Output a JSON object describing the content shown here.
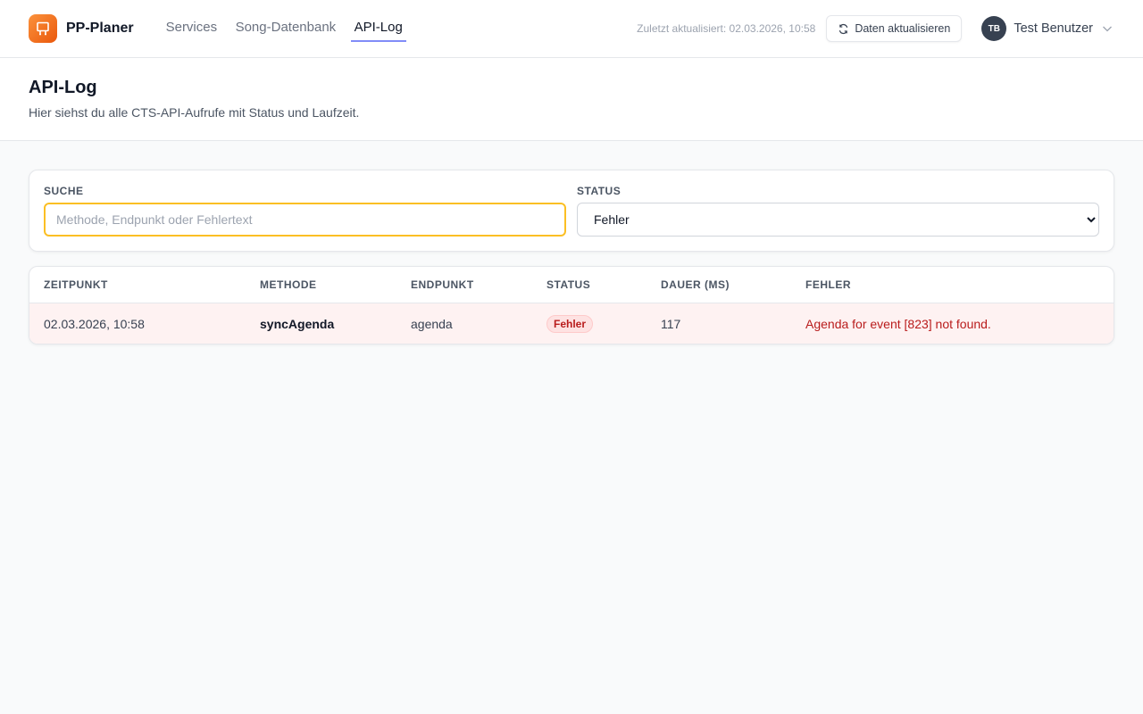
{
  "app": {
    "name": "PP-Planer",
    "accent": "#f97316"
  },
  "nav": [
    {
      "label": "Services"
    },
    {
      "label": "Song-Datenbank"
    },
    {
      "label": "API-Log",
      "active": true
    }
  ],
  "topbar": {
    "updated": "Zuletzt aktualisiert: 02.03.2026, 10:58",
    "refresh_label": "Daten aktualisieren",
    "user_initials": "TB",
    "user_name": "Test Benutzer"
  },
  "page": {
    "title": "API-Log",
    "subtitle": "Hier siehst du alle CTS-API-Aufrufe mit Status und Laufzeit."
  },
  "filters": {
    "search_label": "SUCHE",
    "search_placeholder": "Methode, Endpunkt oder Fehlertext",
    "search_value": "",
    "status_label": "STATUS",
    "status_value": "Fehler"
  },
  "table": {
    "columns": [
      "ZEITPUNKT",
      "METHODE",
      "ENDPUNKT",
      "STATUS",
      "DAUER (MS)",
      "FEHLER"
    ],
    "rows": [
      {
        "time": "02.03.2026, 10:58",
        "method": "syncAgenda",
        "endpoint": "agenda",
        "status": "Fehler",
        "duration": "117",
        "error": "Agenda for event [823] not found."
      }
    ]
  }
}
